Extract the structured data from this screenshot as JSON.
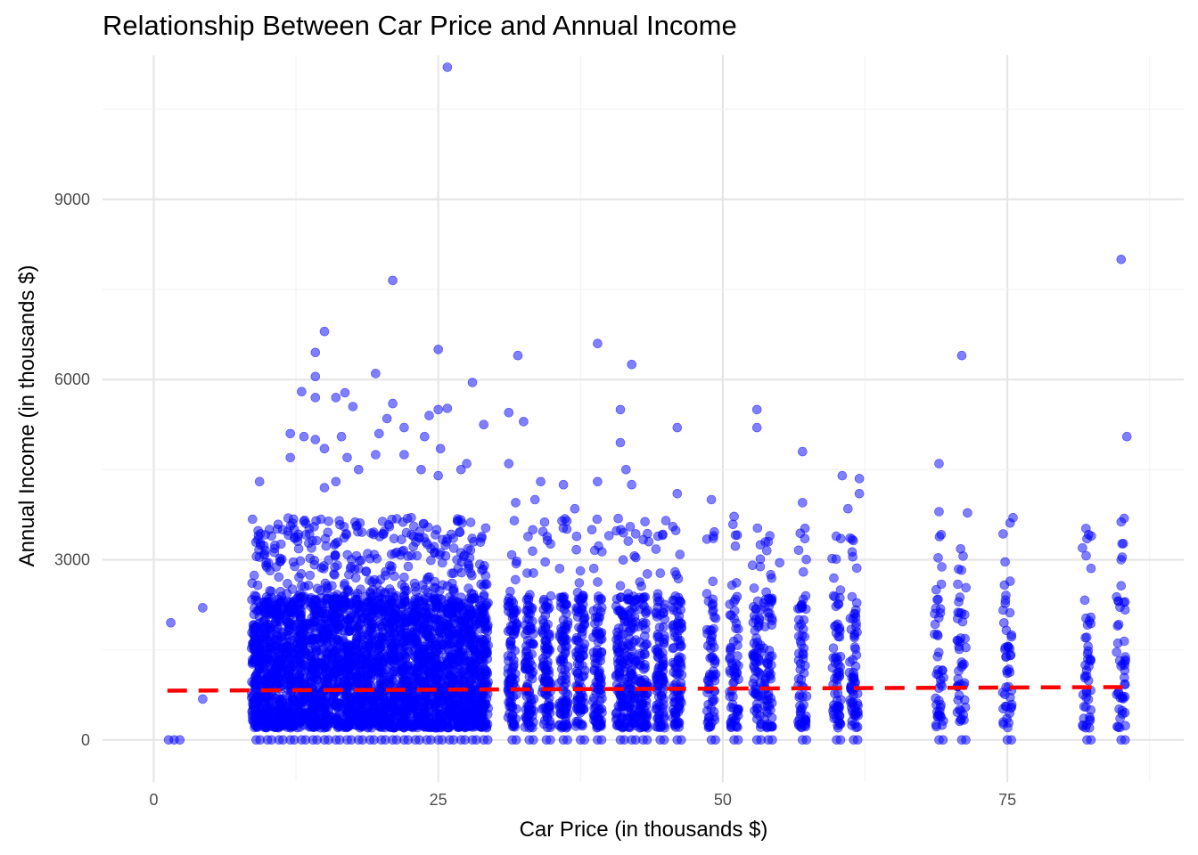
{
  "chart_data": {
    "type": "scatter",
    "title": "Relationship Between Car Price and Annual Income",
    "xlabel": "Car Price (in thousands $)",
    "ylabel": "Annual Income (in thousands $)",
    "xlim": [
      -4.5,
      90.5
    ],
    "ylim": [
      -700,
      11400
    ],
    "x_ticks": [
      0,
      25,
      50,
      75
    ],
    "x_tick_labels": [
      "0",
      "25",
      "50",
      "75"
    ],
    "y_ticks": [
      0,
      3000,
      6000,
      9000
    ],
    "y_tick_labels": [
      "0",
      "3000",
      "6000",
      "9000"
    ],
    "grid": true,
    "legend": "none",
    "point_color": "#0000ff",
    "point_opacity": 0.5,
    "trend_color": "#ff0000",
    "trend_style": "dashed",
    "trend_line": [
      [
        1.2,
        820
      ],
      [
        85.5,
        880
      ]
    ],
    "bulk_price_groups": [
      9,
      10,
      11,
      12,
      13,
      14,
      15,
      16,
      17,
      18,
      19,
      20,
      21,
      22,
      23,
      24,
      25,
      26,
      27,
      28,
      29,
      31.5,
      33,
      34.5,
      36,
      37.5,
      39,
      41,
      42,
      43,
      44.5,
      46,
      49,
      51,
      53,
      54,
      57,
      60,
      61.5,
      69,
      71,
      75,
      82,
      85
    ],
    "bulk_income_typical_range": [
      200,
      2400
    ],
    "outliers": [
      {
        "x": 1.3,
        "y": 0
      },
      {
        "x": 1.8,
        "y": 0
      },
      {
        "x": 2.3,
        "y": 0
      },
      {
        "x": 1.5,
        "y": 1950
      },
      {
        "x": 4.3,
        "y": 2200
      },
      {
        "x": 4.3,
        "y": 680
      },
      {
        "x": 25.8,
        "y": 11200
      },
      {
        "x": 21,
        "y": 7650
      },
      {
        "x": 85,
        "y": 8000
      },
      {
        "x": 15,
        "y": 6800
      },
      {
        "x": 25,
        "y": 6500
      },
      {
        "x": 14.2,
        "y": 6450
      },
      {
        "x": 32,
        "y": 6400
      },
      {
        "x": 71,
        "y": 6400
      },
      {
        "x": 39,
        "y": 6600
      },
      {
        "x": 42,
        "y": 6250
      },
      {
        "x": 19.5,
        "y": 6100
      },
      {
        "x": 14.2,
        "y": 6050
      },
      {
        "x": 28,
        "y": 5950
      },
      {
        "x": 13,
        "y": 5800
      },
      {
        "x": 16.8,
        "y": 5780
      },
      {
        "x": 16,
        "y": 5700
      },
      {
        "x": 14.2,
        "y": 5700
      },
      {
        "x": 21,
        "y": 5600
      },
      {
        "x": 17.5,
        "y": 5550
      },
      {
        "x": 25,
        "y": 5500
      },
      {
        "x": 25.8,
        "y": 5520
      },
      {
        "x": 41,
        "y": 5500
      },
      {
        "x": 53,
        "y": 5500
      },
      {
        "x": 31.2,
        "y": 5450
      },
      {
        "x": 24.2,
        "y": 5400
      },
      {
        "x": 20.5,
        "y": 5350
      },
      {
        "x": 32.5,
        "y": 5300
      },
      {
        "x": 29,
        "y": 5250
      },
      {
        "x": 46,
        "y": 5200
      },
      {
        "x": 53,
        "y": 5200
      },
      {
        "x": 22,
        "y": 5200
      },
      {
        "x": 12,
        "y": 5100
      },
      {
        "x": 13.2,
        "y": 5050
      },
      {
        "x": 19.8,
        "y": 5100
      },
      {
        "x": 16.5,
        "y": 5050
      },
      {
        "x": 14.2,
        "y": 5000
      },
      {
        "x": 23.8,
        "y": 5050
      },
      {
        "x": 85.5,
        "y": 5050
      },
      {
        "x": 41,
        "y": 4950
      },
      {
        "x": 25.2,
        "y": 4850
      },
      {
        "x": 15,
        "y": 4850
      },
      {
        "x": 57,
        "y": 4800
      },
      {
        "x": 17,
        "y": 4700
      },
      {
        "x": 19.5,
        "y": 4750
      },
      {
        "x": 22,
        "y": 4750
      },
      {
        "x": 12,
        "y": 4700
      },
      {
        "x": 69,
        "y": 4600
      },
      {
        "x": 31.2,
        "y": 4600
      },
      {
        "x": 27.5,
        "y": 4600
      },
      {
        "x": 27,
        "y": 4500
      },
      {
        "x": 18,
        "y": 4500
      },
      {
        "x": 23.5,
        "y": 4500
      },
      {
        "x": 41.5,
        "y": 4500
      },
      {
        "x": 25,
        "y": 4400
      },
      {
        "x": 60.5,
        "y": 4400
      },
      {
        "x": 62,
        "y": 4350
      },
      {
        "x": 9.3,
        "y": 4300
      },
      {
        "x": 39,
        "y": 4300
      },
      {
        "x": 34,
        "y": 4300
      },
      {
        "x": 36,
        "y": 4250
      },
      {
        "x": 42,
        "y": 4250
      },
      {
        "x": 16,
        "y": 4300
      },
      {
        "x": 15,
        "y": 4200
      },
      {
        "x": 46,
        "y": 4100
      },
      {
        "x": 62,
        "y": 4100
      },
      {
        "x": 49,
        "y": 4000
      },
      {
        "x": 33.5,
        "y": 4000
      },
      {
        "x": 37,
        "y": 3850
      },
      {
        "x": 31.8,
        "y": 3950
      },
      {
        "x": 57,
        "y": 3950
      },
      {
        "x": 61,
        "y": 3850
      },
      {
        "x": 69,
        "y": 3800
      },
      {
        "x": 71.5,
        "y": 3780
      },
      {
        "x": 51,
        "y": 3720
      },
      {
        "x": 75.5,
        "y": 3700
      },
      {
        "x": 82,
        "y": 3350
      },
      {
        "x": 54,
        "y": 3300
      },
      {
        "x": 9.2,
        "y": 3400
      },
      {
        "x": 85,
        "y": 3000
      },
      {
        "x": 45,
        "y": 3650
      },
      {
        "x": 43.5,
        "y": 3300
      },
      {
        "x": 38.5,
        "y": 3500
      },
      {
        "x": 40,
        "y": 3400
      },
      {
        "x": 55,
        "y": 2950
      }
    ]
  }
}
